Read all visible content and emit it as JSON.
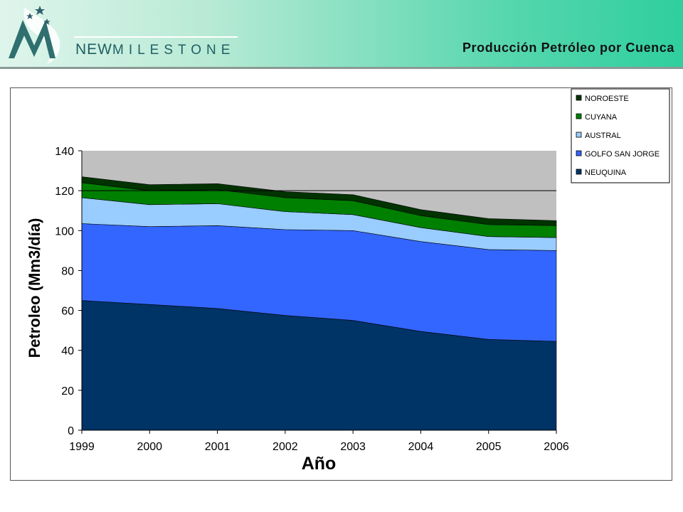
{
  "header": {
    "brand_new": "NEW",
    "brand_rest": "MILESTONE",
    "title": "Producción Petróleo por Cuenca"
  },
  "colors": {
    "NEUQUINA": "#003366",
    "GOLFO SAN JORGE": "#3366ff",
    "AUSTRAL": "#99ccff",
    "CUYANA": "#008000",
    "NOROESTE": "#003300",
    "plot_background": "#c0c0c0"
  },
  "chart_data": {
    "type": "area",
    "stacked": true,
    "xlabel": "Año",
    "ylabel": "Petroleo (Mm3/día)",
    "ylim": [
      0,
      140
    ],
    "yticks": [
      0,
      20,
      40,
      60,
      80,
      100,
      120,
      140
    ],
    "x": [
      1999,
      2000,
      2001,
      2002,
      2003,
      2004,
      2005,
      2006
    ],
    "gridlines": [
      120
    ],
    "legend_position": "top-right",
    "series": [
      {
        "name": "NEUQUINA",
        "values": [
          65,
          63,
          61,
          57.5,
          55,
          49.5,
          45.5,
          44.5
        ]
      },
      {
        "name": "GOLFO SAN JORGE",
        "values": [
          38.5,
          39,
          41.5,
          43,
          45,
          45,
          45,
          45.5
        ]
      },
      {
        "name": "AUSTRAL",
        "values": [
          13,
          11,
          11,
          9,
          8,
          7,
          6.5,
          6.5
        ]
      },
      {
        "name": "CUYANA",
        "values": [
          7.5,
          7,
          7,
          7,
          7,
          6,
          6,
          6
        ]
      },
      {
        "name": "NOROESTE",
        "values": [
          3,
          3,
          3,
          3,
          3,
          3,
          3,
          2.5
        ]
      }
    ]
  }
}
